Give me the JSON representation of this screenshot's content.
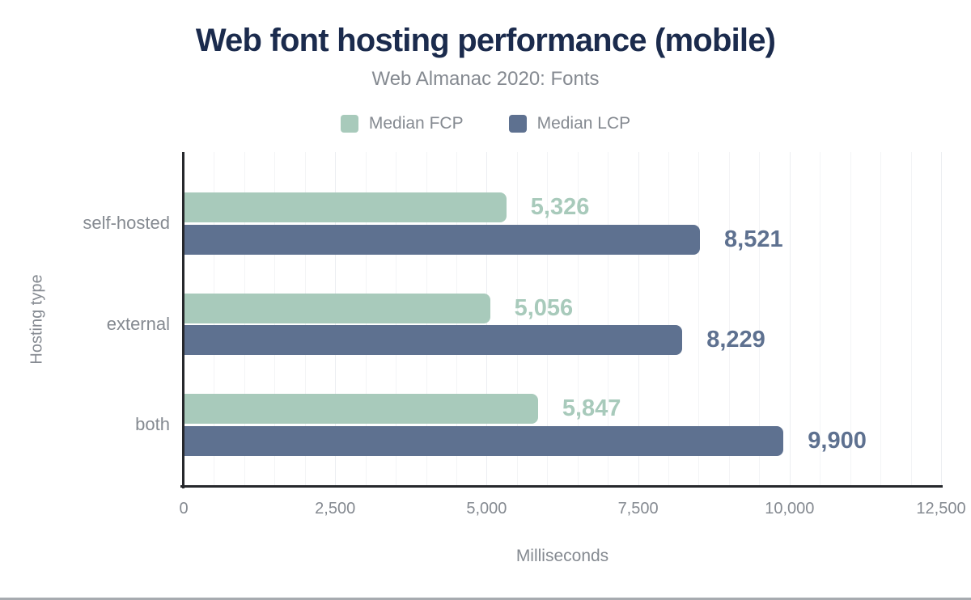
{
  "chart_data": {
    "type": "bar",
    "orientation": "horizontal",
    "title": "Web font hosting performance (mobile)",
    "subtitle": "Web Almanac 2020: Fonts",
    "categories": [
      "self-hosted",
      "external",
      "both"
    ],
    "series": [
      {
        "name": "Median FCP",
        "color": "#a8cabb",
        "values": [
          5326,
          5056,
          5847
        ],
        "value_labels": [
          "5,326",
          "5,056",
          "5,847"
        ]
      },
      {
        "name": "Median LCP",
        "color": "#5e7190",
        "values": [
          8521,
          8229,
          9900
        ],
        "value_labels": [
          "8,521",
          "8,229",
          "9,900"
        ]
      }
    ],
    "xlabel": "Milliseconds",
    "ylabel": "Hosting type",
    "xlim": [
      0,
      12500
    ],
    "xticks": [
      0,
      2500,
      5000,
      7500,
      10000,
      12500
    ],
    "xtick_labels": [
      "0",
      "2,500",
      "5,000",
      "7,500",
      "10,000",
      "12,500"
    ],
    "grid": {
      "on": true,
      "minor_step": 500,
      "major_step": 2500
    },
    "legend_position": "top"
  },
  "colors": {
    "title": "#1b2b4d",
    "text_muted": "#858a91",
    "axis_line": "#26282c",
    "grid_minor": "#f3f4f6",
    "grid_major": "#eceef1",
    "background": "#ffffff",
    "bottom_rule": "#a7abb0"
  }
}
